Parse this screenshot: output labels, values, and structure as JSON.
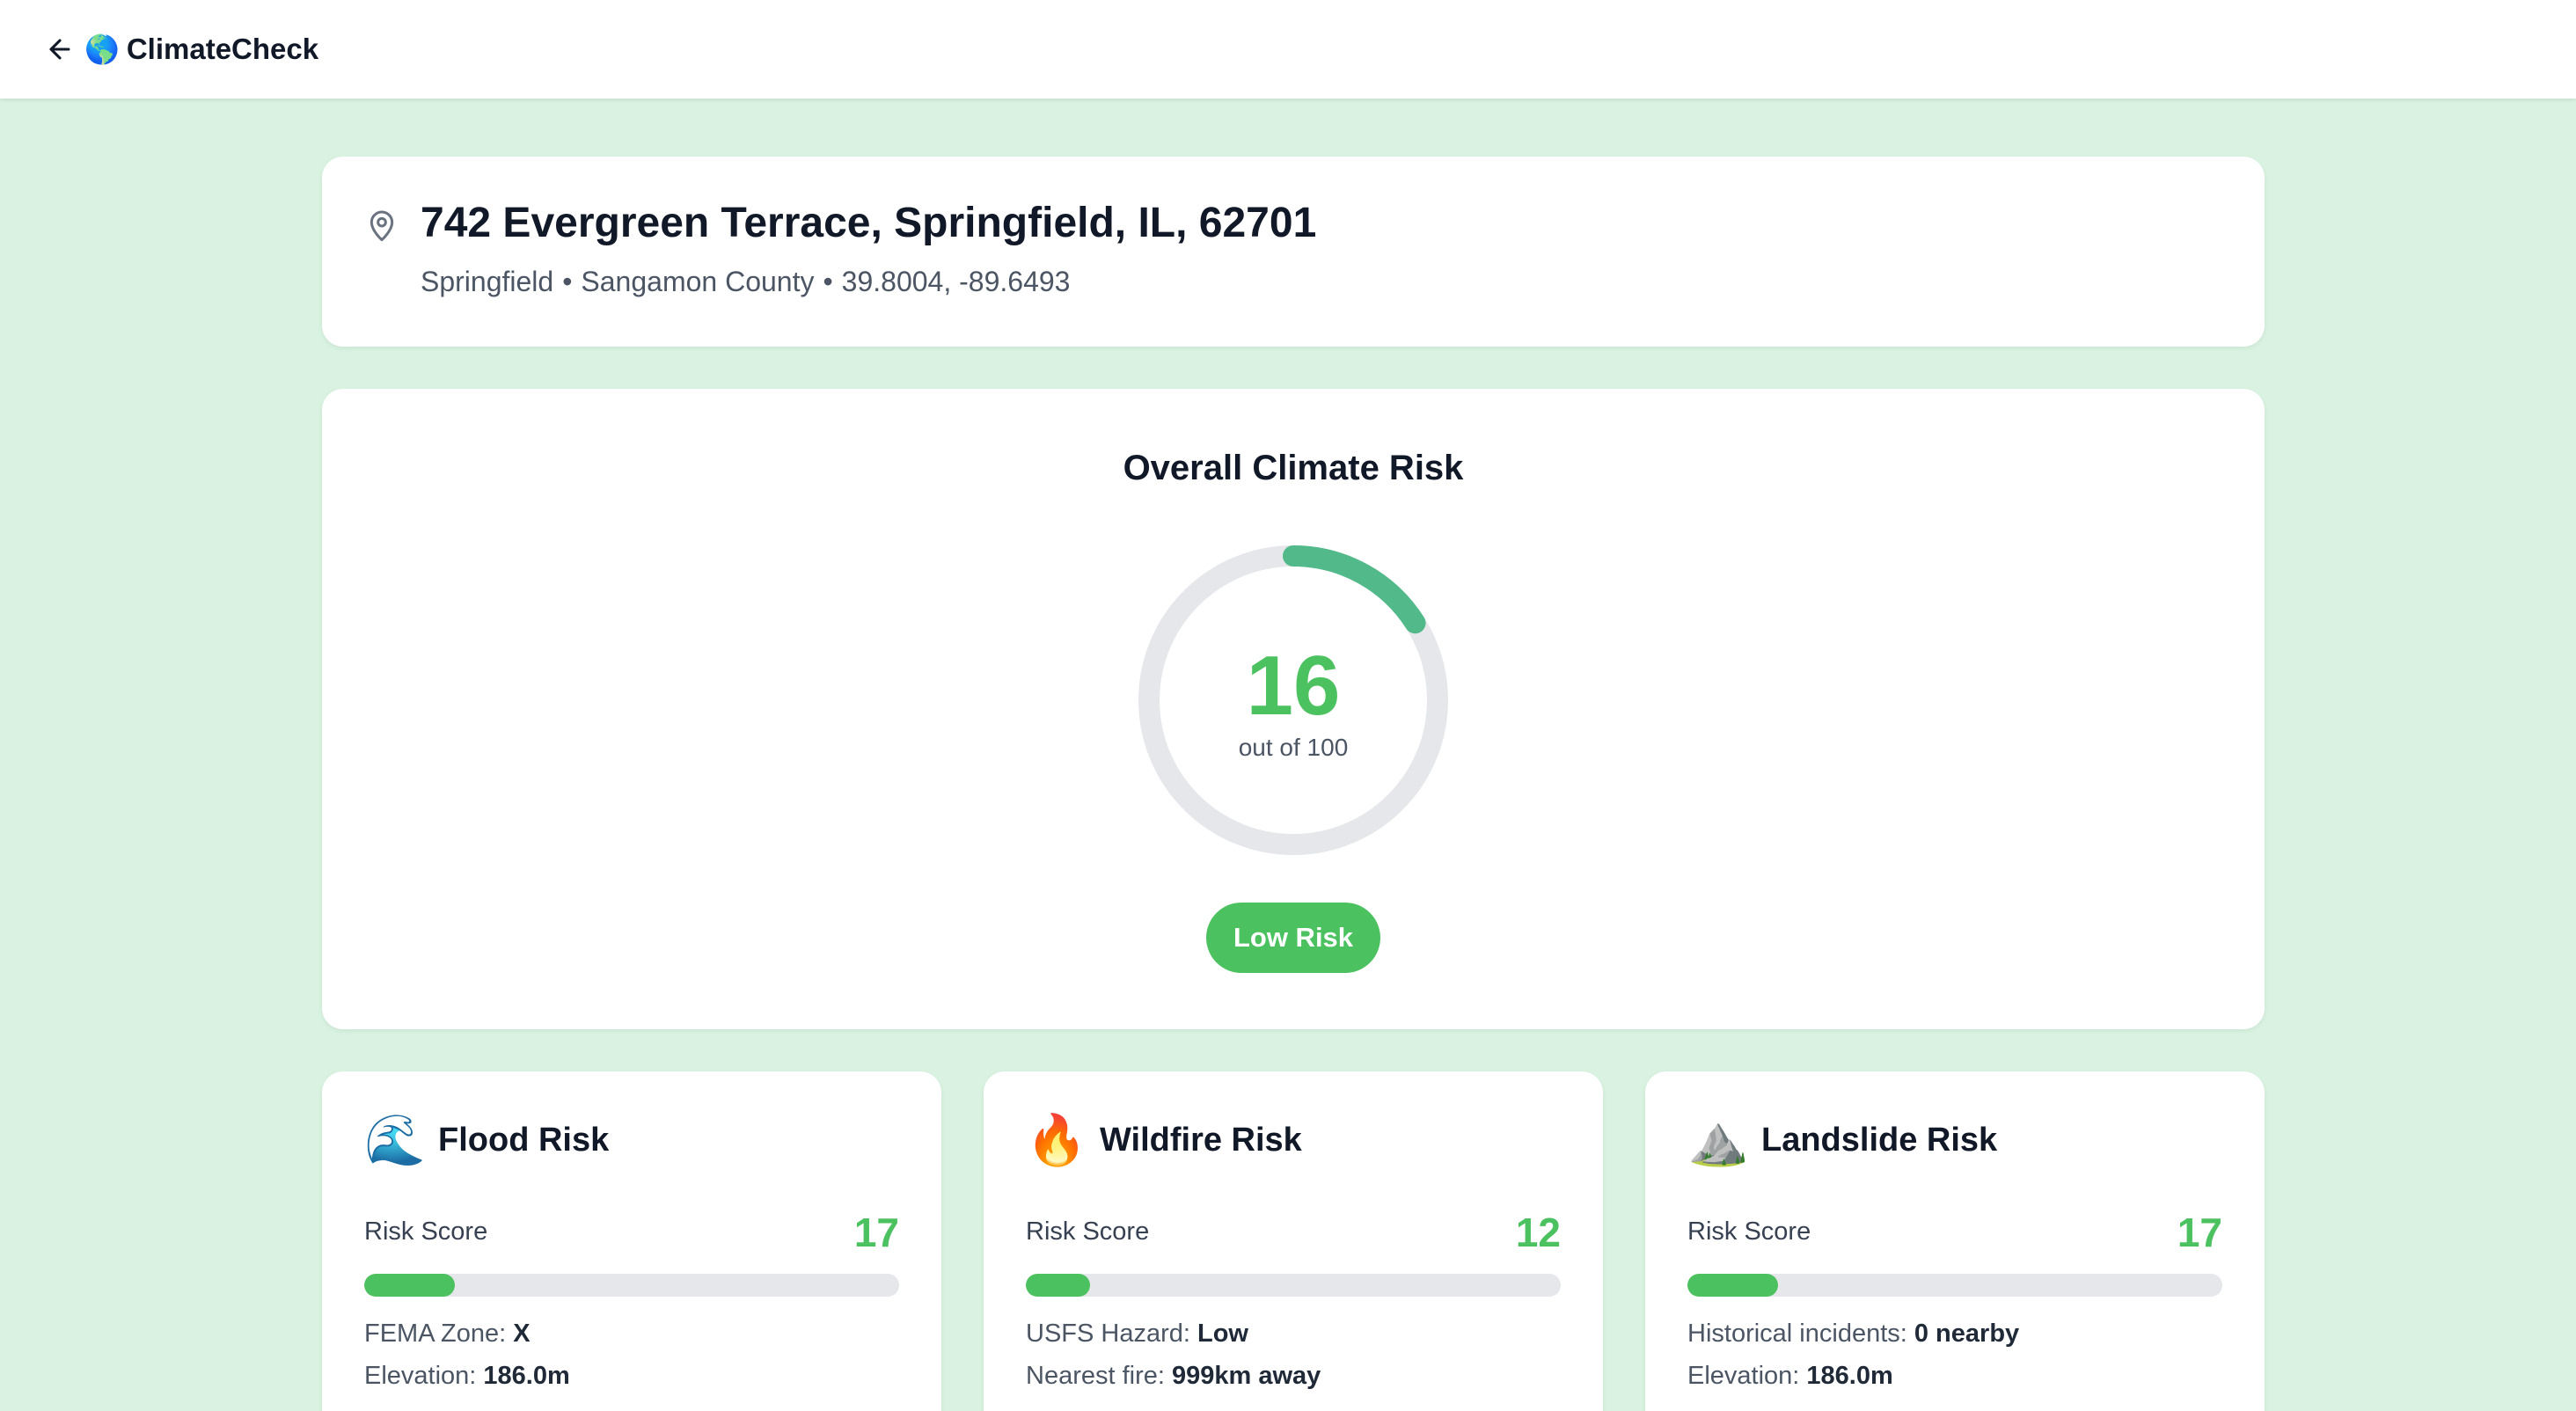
{
  "app": {
    "name": "ClimateCheck",
    "logo_icon": "globe-icon"
  },
  "colors": {
    "low_risk": "#4cc15f",
    "background": "#d9f2e1",
    "track": "#e5e7eb"
  },
  "address": {
    "title": "742 Evergreen Terrace, Springfield, IL, 62701",
    "city": "Springfield",
    "county": "Sangamon County",
    "coords": "39.8004, -89.6493",
    "separator": "•"
  },
  "overall": {
    "title": "Overall Climate Risk",
    "score": "16",
    "score_fraction": 0.16,
    "out_of": "out of 100",
    "level": "Low Risk"
  },
  "risks": [
    {
      "title": "Flood Risk",
      "emoji": "🌊",
      "icon": "wave-icon",
      "score_label": "Risk Score",
      "score": "17",
      "fraction": 0.17,
      "line1_label": "FEMA Zone: ",
      "line1_value": "X",
      "line2_label": "Elevation: ",
      "line2_value": "186.0m"
    },
    {
      "title": "Wildfire Risk",
      "emoji": "🔥",
      "icon": "fire-icon",
      "score_label": "Risk Score",
      "score": "12",
      "fraction": 0.12,
      "line1_label": "USFS Hazard: ",
      "line1_value": "Low",
      "line2_label": "Nearest fire: ",
      "line2_value": "999km away"
    },
    {
      "title": "Landslide Risk",
      "emoji": "⛰️",
      "icon": "mountain-icon",
      "score_label": "Risk Score",
      "score": "17",
      "fraction": 0.17,
      "line1_label": "Historical incidents: ",
      "line1_value": "0 nearby",
      "line2_label": "Elevation: ",
      "line2_value": "186.0m"
    }
  ]
}
